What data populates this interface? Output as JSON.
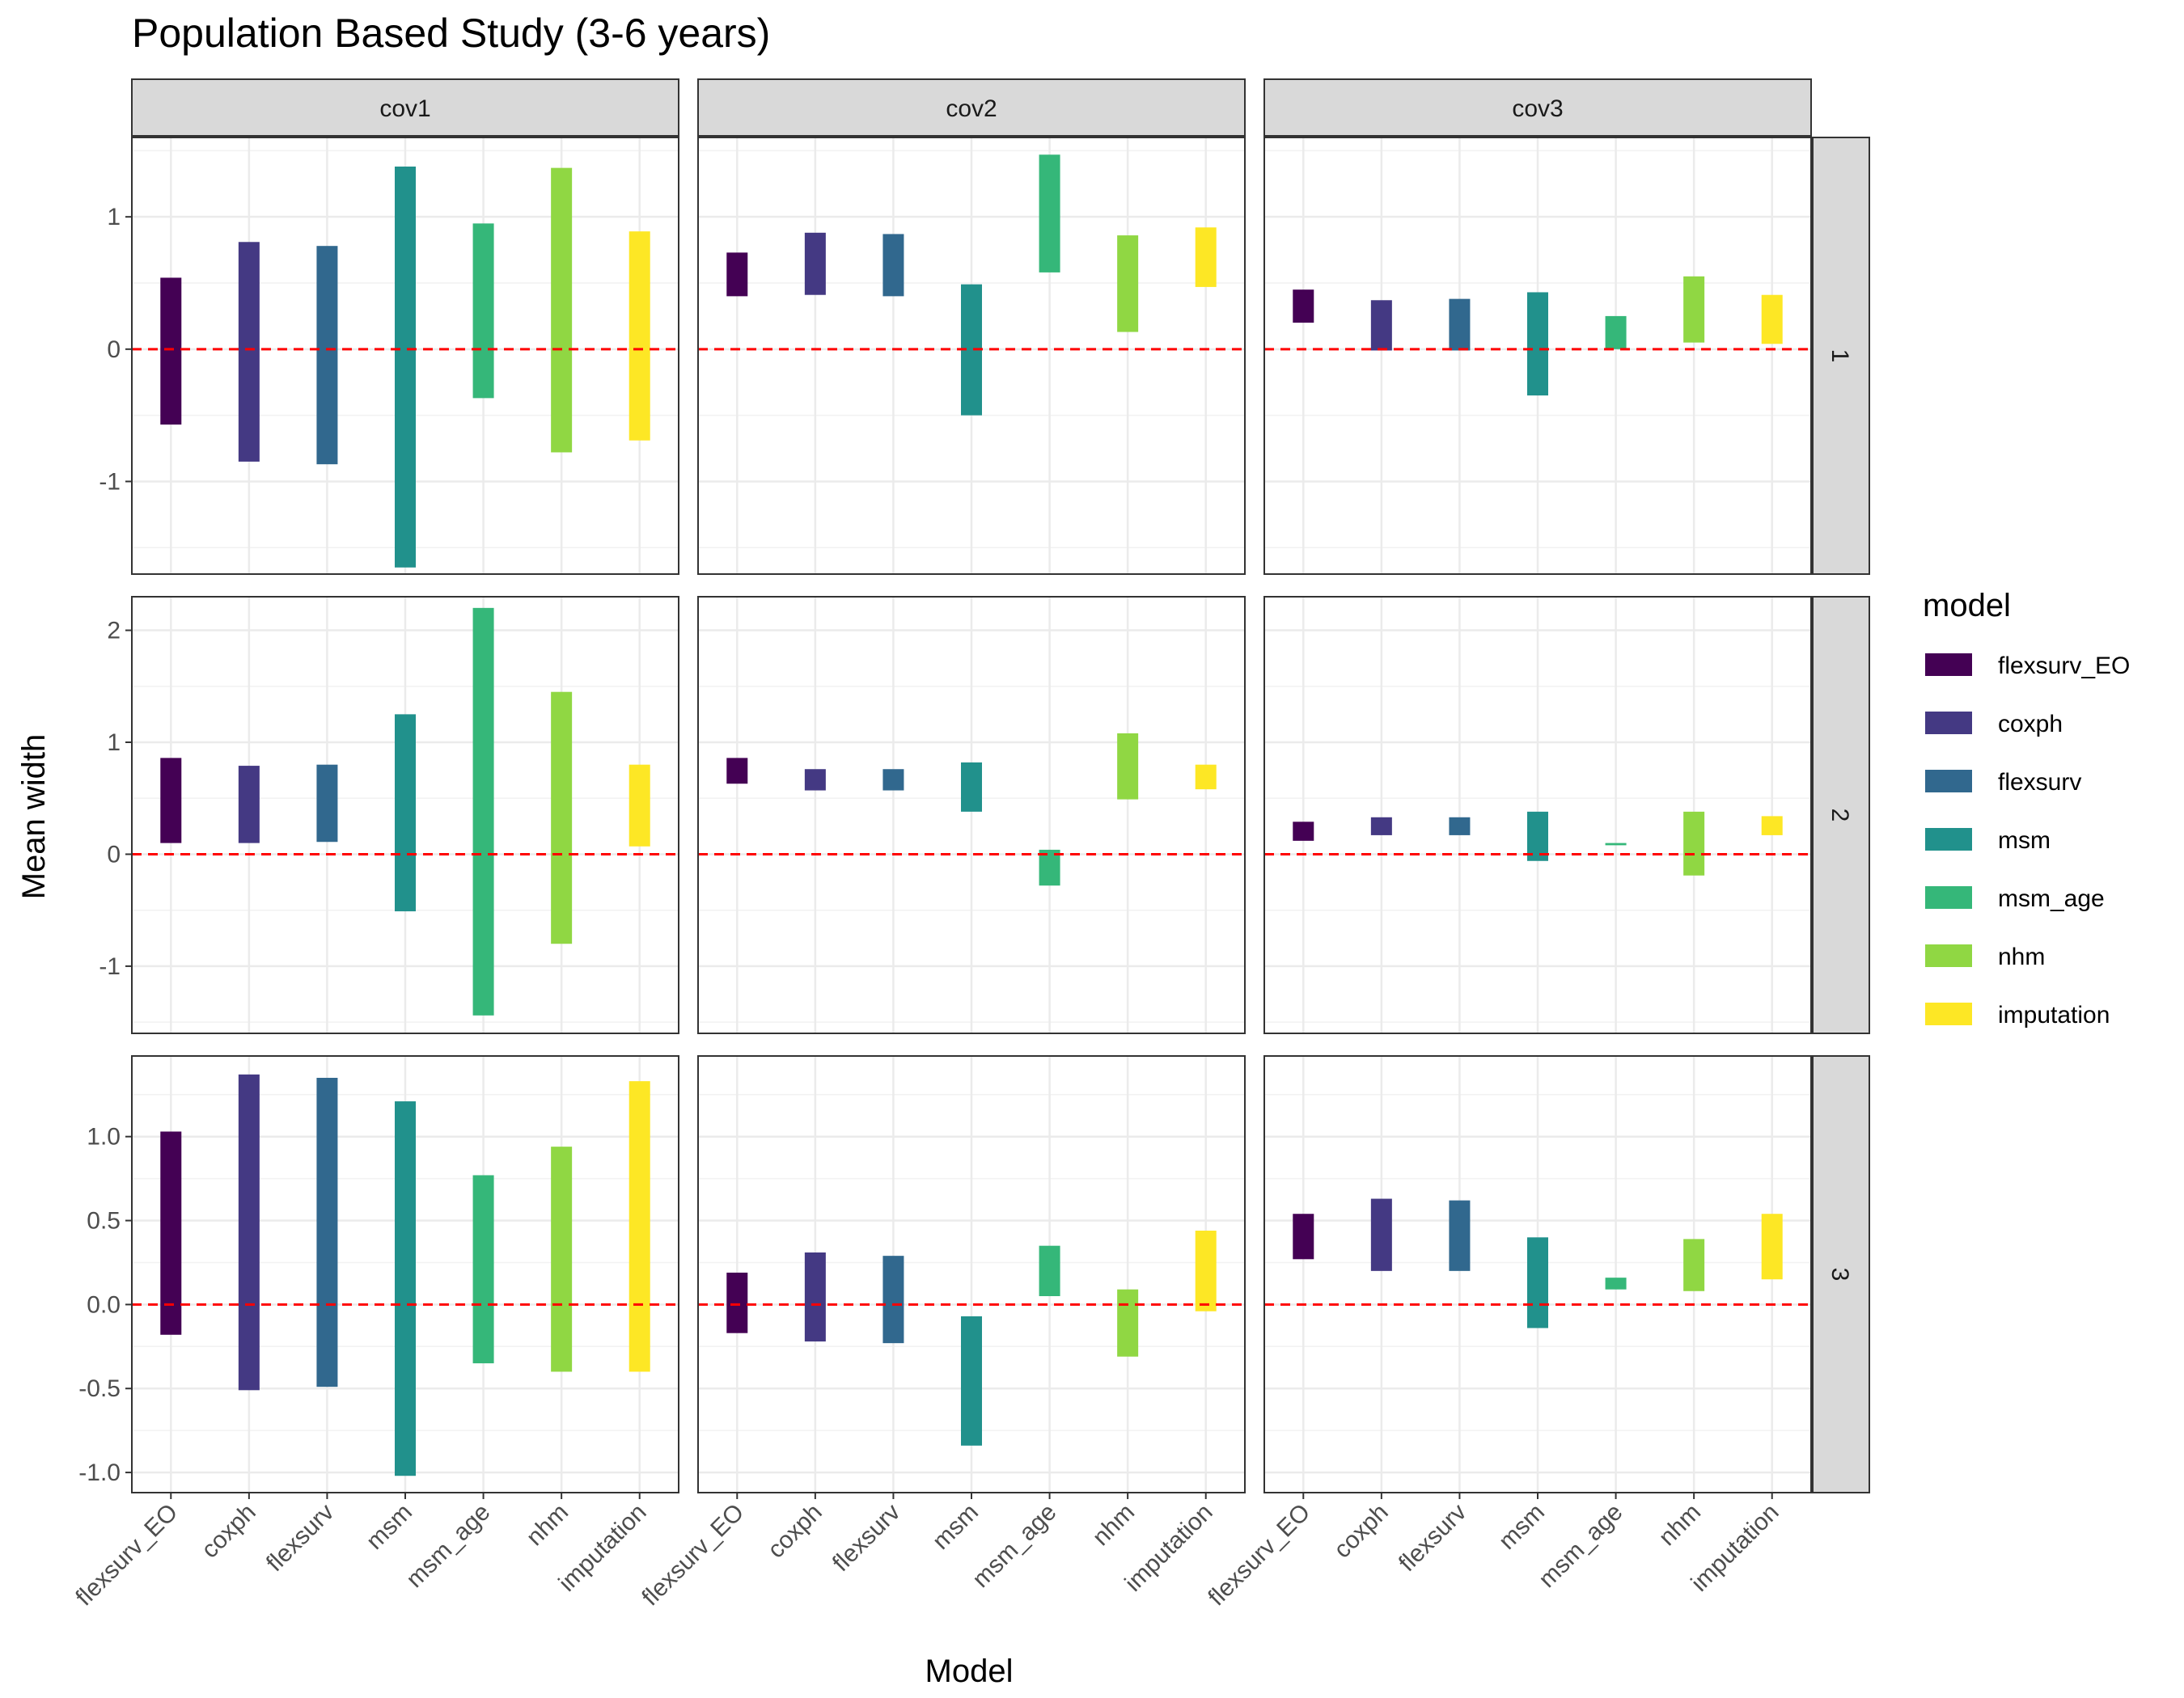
{
  "chart_data": {
    "type": "bar",
    "subtype": "floating-range-bar-facet-grid",
    "title": "Population Based Study (3-6 years)",
    "xlabel": "Model",
    "ylabel": "Mean width",
    "categories": [
      "flexsurv_EO",
      "coxph",
      "flexsurv",
      "msm",
      "msm_age",
      "nhm",
      "imputation"
    ],
    "col_facets": [
      "cov1",
      "cov2",
      "cov3"
    ],
    "row_facets": [
      "1",
      "2",
      "3"
    ],
    "reference_line": {
      "y": 0,
      "color": "#ff0000",
      "style": "dashed"
    },
    "legend": {
      "title": "model",
      "position": "right",
      "entries": [
        {
          "label": "flexsurv_EO",
          "color": "#440154"
        },
        {
          "label": "coxph",
          "color": "#443983"
        },
        {
          "label": "flexsurv",
          "color": "#31688e"
        },
        {
          "label": "msm",
          "color": "#21918c"
        },
        {
          "label": "msm_age",
          "color": "#35b779"
        },
        {
          "label": "nhm",
          "color": "#90d743"
        },
        {
          "label": "imputation",
          "color": "#fde725"
        }
      ]
    },
    "rows": [
      {
        "row": "1",
        "ylim": [
          -1.7,
          1.6
        ],
        "y_ticks": [
          -1,
          0,
          1
        ],
        "y_tick_labels": [
          "-1",
          "0",
          "1"
        ],
        "panels": [
          {
            "col": "cov1",
            "ranges": [
              [
                -0.57,
                0.54
              ],
              [
                -0.85,
                0.81
              ],
              [
                -0.87,
                0.78
              ],
              [
                -1.65,
                1.38
              ],
              [
                -0.37,
                0.95
              ],
              [
                -0.78,
                1.37
              ],
              [
                -0.69,
                0.89
              ]
            ]
          },
          {
            "col": "cov2",
            "ranges": [
              [
                0.4,
                0.73
              ],
              [
                0.41,
                0.88
              ],
              [
                0.4,
                0.87
              ],
              [
                -0.5,
                0.49
              ],
              [
                0.58,
                1.47
              ],
              [
                0.13,
                0.86
              ],
              [
                0.47,
                0.92
              ]
            ]
          },
          {
            "col": "cov3",
            "ranges": [
              [
                0.2,
                0.45
              ],
              [
                -0.01,
                0.37
              ],
              [
                -0.01,
                0.38
              ],
              [
                -0.35,
                0.43
              ],
              [
                0.0,
                0.25
              ],
              [
                0.05,
                0.55
              ],
              [
                0.04,
                0.41
              ]
            ]
          }
        ]
      },
      {
        "row": "2",
        "ylim": [
          -1.6,
          2.3
        ],
        "y_ticks": [
          -1,
          0,
          1,
          2
        ],
        "y_tick_labels": [
          "-1",
          "0",
          "1",
          "2"
        ],
        "panels": [
          {
            "col": "cov1",
            "ranges": [
              [
                0.1,
                0.86
              ],
              [
                0.1,
                0.79
              ],
              [
                0.11,
                0.8
              ],
              [
                -0.51,
                1.25
              ],
              [
                -1.44,
                2.2
              ],
              [
                -0.8,
                1.45
              ],
              [
                0.07,
                0.8
              ]
            ]
          },
          {
            "col": "cov2",
            "ranges": [
              [
                0.63,
                0.86
              ],
              [
                0.57,
                0.76
              ],
              [
                0.57,
                0.76
              ],
              [
                0.38,
                0.82
              ],
              [
                -0.28,
                0.04
              ],
              [
                0.49,
                1.08
              ],
              [
                0.58,
                0.8
              ]
            ]
          },
          {
            "col": "cov3",
            "ranges": [
              [
                0.12,
                0.29
              ],
              [
                0.17,
                0.33
              ],
              [
                0.17,
                0.33
              ],
              [
                -0.06,
                0.38
              ],
              [
                0.08,
                0.1
              ],
              [
                -0.19,
                0.38
              ],
              [
                0.17,
                0.34
              ]
            ]
          }
        ]
      },
      {
        "row": "3",
        "ylim": [
          -1.12,
          1.48
        ],
        "y_ticks": [
          -1.0,
          -0.5,
          0.0,
          0.5,
          1.0
        ],
        "y_tick_labels": [
          "-1.0",
          "-0.5",
          "0.0",
          "0.5",
          "1.0"
        ],
        "panels": [
          {
            "col": "cov1",
            "ranges": [
              [
                -0.18,
                1.03
              ],
              [
                -0.51,
                1.37
              ],
              [
                -0.49,
                1.35
              ],
              [
                -1.02,
                1.21
              ],
              [
                -0.35,
                0.77
              ],
              [
                -0.4,
                0.94
              ],
              [
                -0.4,
                1.33
              ]
            ]
          },
          {
            "col": "cov2",
            "ranges": [
              [
                -0.17,
                0.19
              ],
              [
                -0.22,
                0.31
              ],
              [
                -0.23,
                0.29
              ],
              [
                -0.84,
                -0.07
              ],
              [
                0.05,
                0.35
              ],
              [
                -0.31,
                0.09
              ],
              [
                -0.04,
                0.44
              ]
            ]
          },
          {
            "col": "cov3",
            "ranges": [
              [
                0.27,
                0.54
              ],
              [
                0.2,
                0.63
              ],
              [
                0.2,
                0.62
              ],
              [
                -0.14,
                0.4
              ],
              [
                0.09,
                0.16
              ],
              [
                0.08,
                0.39
              ],
              [
                0.15,
                0.54
              ]
            ]
          }
        ]
      }
    ]
  }
}
